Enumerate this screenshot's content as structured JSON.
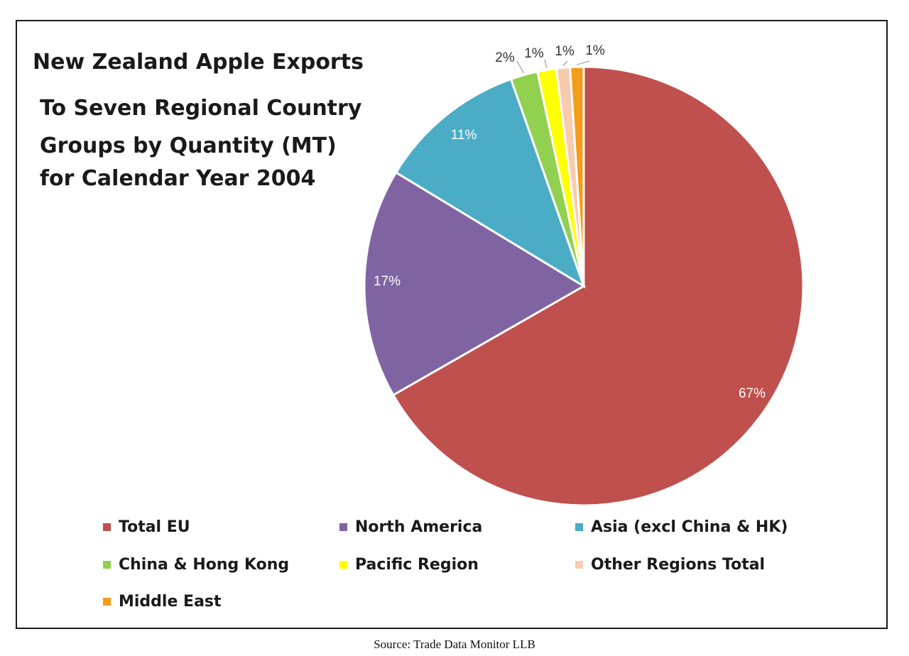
{
  "chart_data": {
    "type": "pie",
    "title": "New Zealand  Apple Exports",
    "subtitle": [
      "To Seven Regional  Country",
      "Groups by Quantity (MT)",
      "for Calendar Year 2004"
    ],
    "legend_position": "bottom",
    "slices": [
      {
        "name": "Total EU",
        "value": 67,
        "label": "67%",
        "color": "#c0504d"
      },
      {
        "name": "North America",
        "value": 17,
        "label": "17%",
        "color": "#8064a2"
      },
      {
        "name": "Asia (excl China & HK)",
        "value": 11,
        "label": "11%",
        "color": "#4bacc6"
      },
      {
        "name": "China & Hong Kong",
        "value": 2,
        "label": "2%",
        "color": "#92d050"
      },
      {
        "name": "Pacific Region",
        "value": 1.4,
        "label": "1%",
        "color": "#ffff00"
      },
      {
        "name": "Other Regions Total",
        "value": 1,
        "label": "1%",
        "color": "#f8cbad"
      },
      {
        "name": "Middle East",
        "value": 1,
        "label": "1%",
        "color": "#f59c1a"
      }
    ]
  },
  "source": "Source: Trade Data Monitor LLB"
}
